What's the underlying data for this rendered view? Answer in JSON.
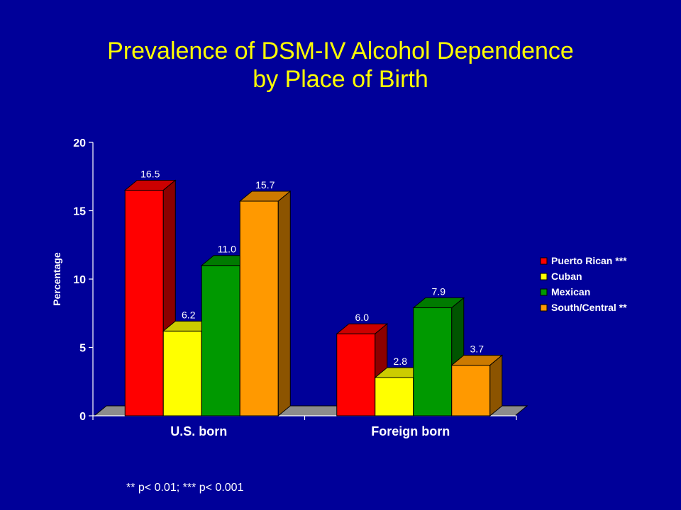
{
  "slide": {
    "title_line1": "Prevalence of DSM-IV Alcohol Dependence",
    "title_line2": "by Place of Birth",
    "footnote": "** p< 0.01;  *** p< 0.001"
  },
  "colors": {
    "background": "#000099",
    "title": "#ffff00",
    "text": "#ffffff"
  },
  "chart_data": {
    "type": "bar",
    "style": "3d-clustered",
    "categories": [
      "U.S. born",
      "Foreign born"
    ],
    "series": [
      {
        "name": "Puerto Rican ***",
        "values": [
          16.5,
          6.0
        ],
        "color": "#ff0000"
      },
      {
        "name": "Cuban",
        "values": [
          6.2,
          2.8
        ],
        "color": "#ffff00"
      },
      {
        "name": "Mexican",
        "values": [
          11.0,
          7.9
        ],
        "color": "#009900"
      },
      {
        "name": "South/Central **",
        "values": [
          15.7,
          3.7
        ],
        "color": "#ff9900"
      }
    ],
    "ylabel": "Percentage",
    "ylim": [
      0,
      20
    ],
    "yticks": [
      0,
      5,
      10,
      15,
      20
    ],
    "legend_position": "right",
    "grid": false
  }
}
